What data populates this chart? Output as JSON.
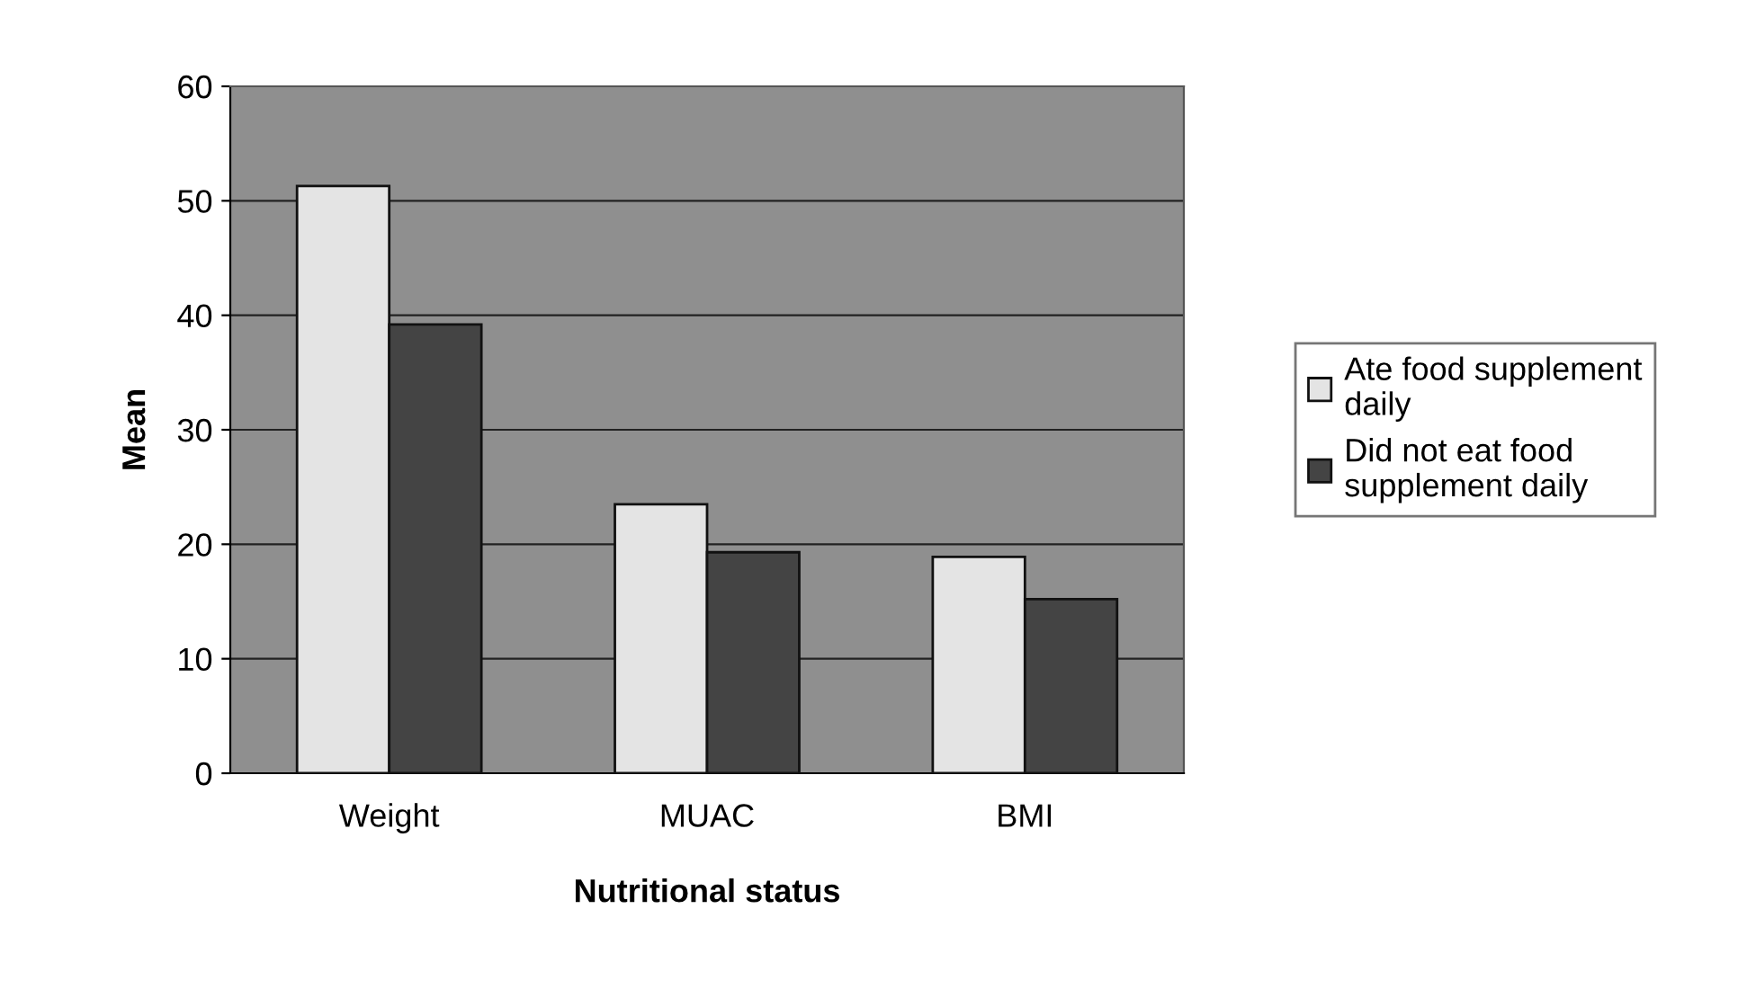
{
  "chart_data": {
    "type": "bar",
    "xlabel": "Nutritional status",
    "ylabel": "Mean",
    "categories": [
      "Weight",
      "MUAC",
      "BMI"
    ],
    "series": [
      {
        "name": "Ate food supplement\ndaily",
        "color": "#e4e4e4",
        "values": [
          51.3,
          23.5,
          18.9
        ]
      },
      {
        "name": "Did not eat food\nsupplement daily",
        "color": "#444444",
        "values": [
          39.2,
          19.3,
          15.2
        ]
      }
    ],
    "ylim": [
      0,
      60
    ],
    "yticks": [
      0,
      10,
      20,
      30,
      40,
      50,
      60
    ],
    "grid": "y",
    "legend": "right"
  }
}
